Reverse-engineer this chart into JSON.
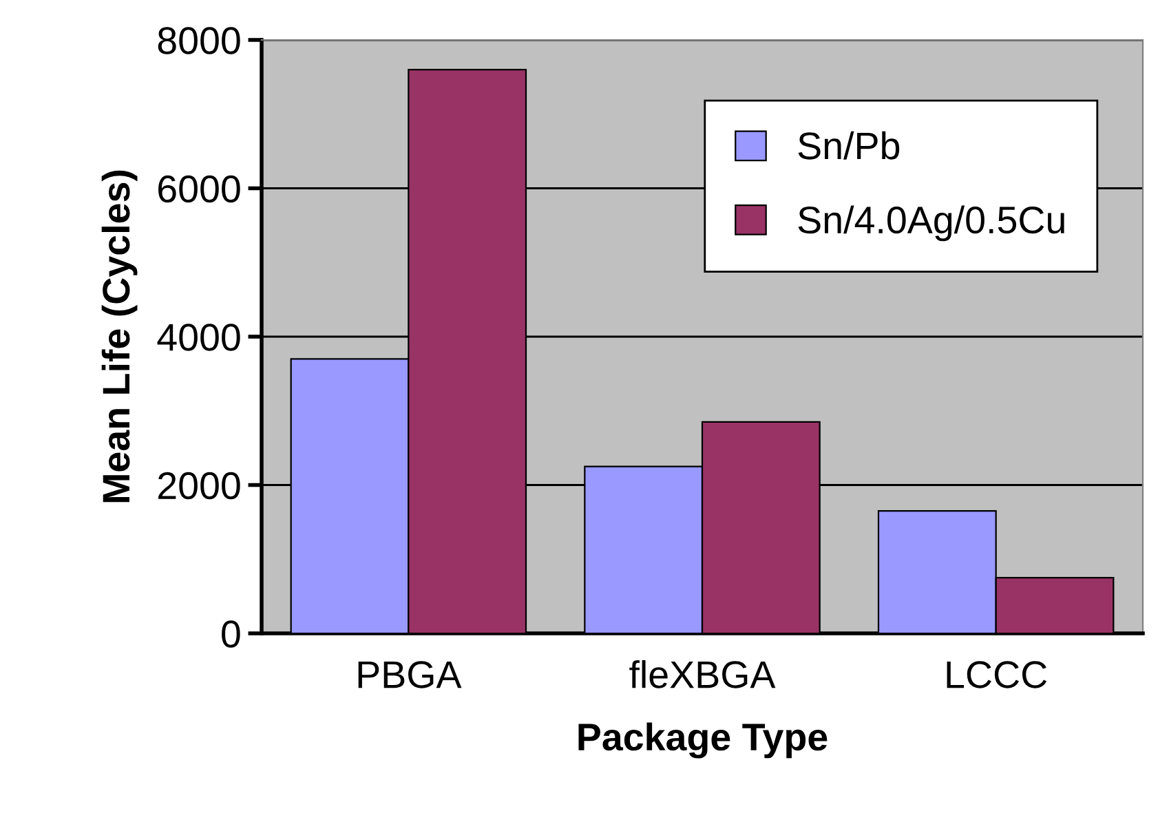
{
  "chart_data": {
    "type": "bar",
    "xlabel": "Package Type",
    "ylabel": "Mean Life (Cycles)",
    "categories": [
      "PBGA",
      "fleXBGA",
      "LCCC"
    ],
    "series": [
      {
        "name": "Sn/Pb",
        "color": "#9999ff",
        "values": [
          3700,
          2250,
          1650
        ]
      },
      {
        "name": "Sn/4.0Ag/0.5Cu",
        "color": "#993366",
        "values": [
          7600,
          2850,
          750
        ]
      }
    ],
    "ylim": [
      0,
      8000
    ],
    "yticks": [
      0,
      2000,
      4000,
      6000,
      8000
    ],
    "grid": "y",
    "legend": "top right"
  }
}
